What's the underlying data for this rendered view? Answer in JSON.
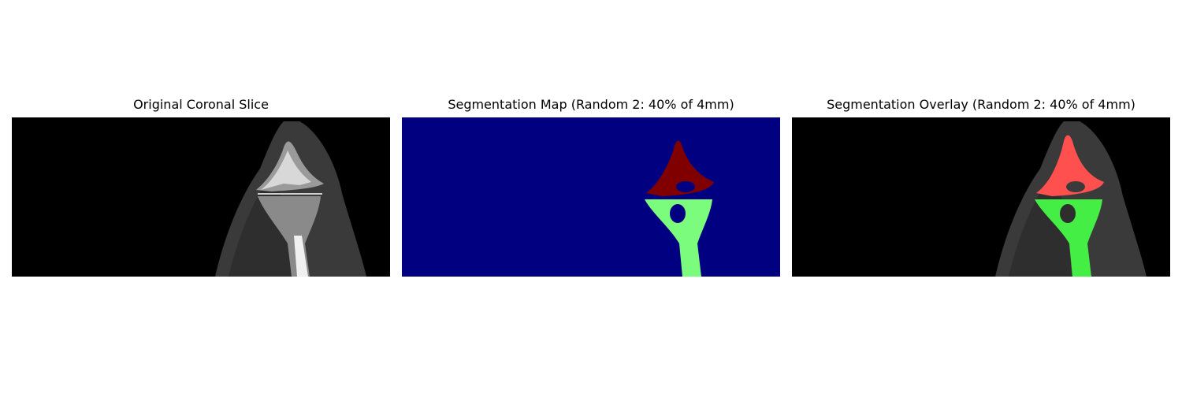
{
  "figure": {
    "panels": [
      {
        "title": "Original Coronal Slice"
      },
      {
        "title": "Segmentation Map (Random 2: 40% of 4mm)"
      },
      {
        "title": "Segmentation Overlay (Random 2: 40% of 4mm)"
      }
    ]
  },
  "colors": {
    "background": "#ffffff",
    "image_black": "#000000",
    "map_background": "#000080",
    "map_upper_bone": "#800000",
    "map_lower_bone": "#7cfc7c",
    "overlay_upper_bone": "#ff5050",
    "overlay_lower_bone": "#44ee44"
  }
}
